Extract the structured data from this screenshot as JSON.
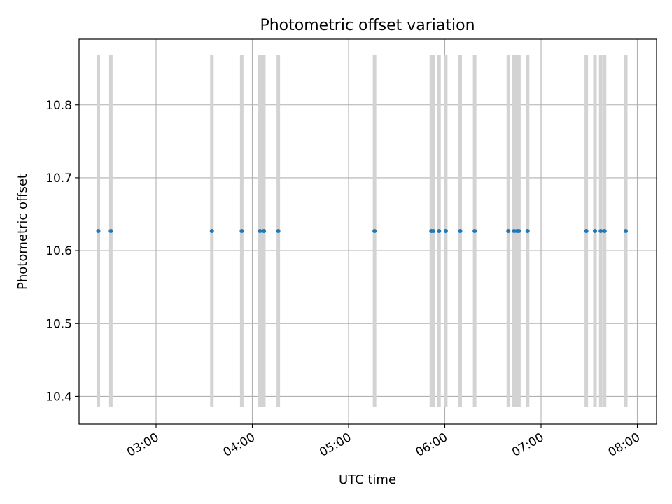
{
  "chart_data": {
    "type": "scatter",
    "title": "Photometric offset variation",
    "xlabel": "UTC time",
    "ylabel": "Photometric offset",
    "x_unit": "UTC hours",
    "xlim": [
      2.2,
      8.2
    ],
    "ylim": [
      10.362,
      10.89
    ],
    "x_ticks": [
      {
        "value": 3,
        "label": "03:00"
      },
      {
        "value": 4,
        "label": "04:00"
      },
      {
        "value": 5,
        "label": "05:00"
      },
      {
        "value": 6,
        "label": "06:00"
      },
      {
        "value": 7,
        "label": "07:00"
      },
      {
        "value": 8,
        "label": "08:00"
      }
    ],
    "y_ticks": [
      {
        "value": 10.4,
        "label": "10.4"
      },
      {
        "value": 10.5,
        "label": "10.5"
      },
      {
        "value": 10.6,
        "label": "10.6"
      },
      {
        "value": 10.7,
        "label": "10.7"
      },
      {
        "value": 10.8,
        "label": "10.8"
      }
    ],
    "grid": true,
    "errorbar_range": [
      10.385,
      10.868
    ],
    "points": [
      {
        "x": 2.4,
        "y": 10.627
      },
      {
        "x": 2.53,
        "y": 10.627
      },
      {
        "x": 3.58,
        "y": 10.627
      },
      {
        "x": 3.89,
        "y": 10.627
      },
      {
        "x": 4.08,
        "y": 10.627
      },
      {
        "x": 4.12,
        "y": 10.627
      },
      {
        "x": 4.27,
        "y": 10.627
      },
      {
        "x": 5.27,
        "y": 10.627
      },
      {
        "x": 5.86,
        "y": 10.627
      },
      {
        "x": 5.88,
        "y": 10.627
      },
      {
        "x": 5.94,
        "y": 10.627
      },
      {
        "x": 6.01,
        "y": 10.627
      },
      {
        "x": 6.16,
        "y": 10.627
      },
      {
        "x": 6.31,
        "y": 10.627
      },
      {
        "x": 6.66,
        "y": 10.627
      },
      {
        "x": 6.72,
        "y": 10.627
      },
      {
        "x": 6.75,
        "y": 10.627
      },
      {
        "x": 6.77,
        "y": 10.627
      },
      {
        "x": 6.86,
        "y": 10.627
      },
      {
        "x": 7.47,
        "y": 10.627
      },
      {
        "x": 7.56,
        "y": 10.627
      },
      {
        "x": 7.62,
        "y": 10.627
      },
      {
        "x": 7.66,
        "y": 10.627
      },
      {
        "x": 7.88,
        "y": 10.627
      }
    ],
    "colors": {
      "points": "#1f77b4",
      "errorbars": "#d3d3d3",
      "grid": "#b0b0b0",
      "axes": "#000000"
    }
  }
}
